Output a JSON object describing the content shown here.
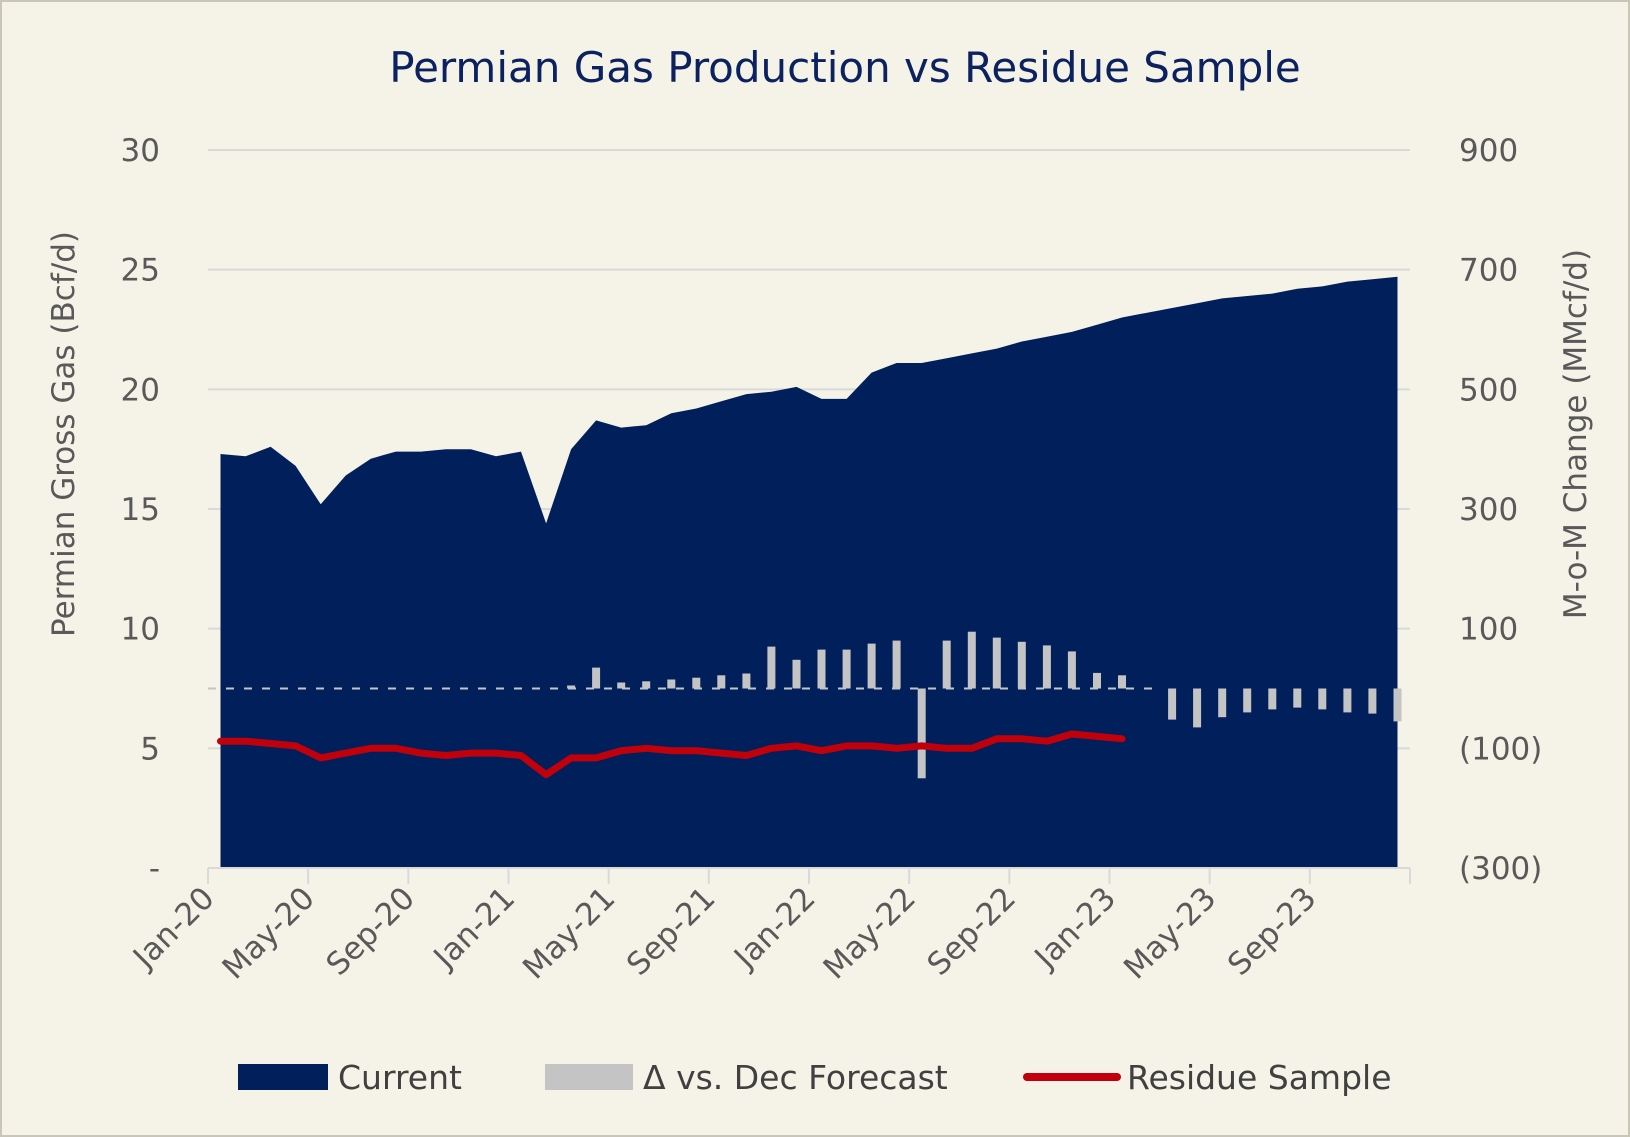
{
  "chart_data": {
    "type": "area",
    "title": "Permian Gas Production vs Residue Sample",
    "ylabel_left": "Permian Gross Gas (Bcf/d)",
    "ylabel_right": "M-o-M Change (MMcf/d)",
    "ylim_left": [
      0,
      30
    ],
    "ylim_right": [
      -300,
      900
    ],
    "yticks_left": [
      "-",
      "5",
      "10",
      "15",
      "20",
      "25",
      "30"
    ],
    "yticks_right": [
      "(300)",
      "(100)",
      "100",
      "300",
      "500",
      "700",
      "900"
    ],
    "x_tick_labels": [
      "Jan-20",
      "May-20",
      "Sep-20",
      "Jan-21",
      "May-21",
      "Sep-21",
      "Jan-22",
      "May-22",
      "Sep-22",
      "Jan-23",
      "May-23",
      "Sep-23"
    ],
    "months": [
      "Jan-20",
      "Feb-20",
      "Mar-20",
      "Apr-20",
      "May-20",
      "Jun-20",
      "Jul-20",
      "Aug-20",
      "Sep-20",
      "Oct-20",
      "Nov-20",
      "Dec-20",
      "Jan-21",
      "Feb-21",
      "Mar-21",
      "Apr-21",
      "May-21",
      "Jun-21",
      "Jul-21",
      "Aug-21",
      "Sep-21",
      "Oct-21",
      "Nov-21",
      "Dec-21",
      "Jan-22",
      "Feb-22",
      "Mar-22",
      "Apr-22",
      "May-22",
      "Jun-22",
      "Jul-22",
      "Aug-22",
      "Sep-22",
      "Oct-22",
      "Nov-22",
      "Dec-22",
      "Jan-23",
      "Feb-23",
      "Mar-23",
      "Apr-23",
      "May-23",
      "Jun-23",
      "Jul-23",
      "Aug-23",
      "Sep-23",
      "Oct-23",
      "Nov-23",
      "Dec-23"
    ],
    "grid": true,
    "legend_position": "bottom",
    "series": [
      {
        "name": "Current",
        "type": "area",
        "axis": "left",
        "color": "#001f5b",
        "values": [
          17.3,
          17.2,
          17.6,
          16.8,
          15.2,
          16.4,
          17.1,
          17.4,
          17.4,
          17.5,
          17.5,
          17.2,
          17.4,
          14.4,
          17.5,
          18.7,
          18.4,
          18.5,
          19.0,
          19.2,
          19.5,
          19.8,
          19.9,
          20.1,
          19.6,
          19.6,
          20.7,
          21.1,
          21.1,
          21.3,
          21.5,
          21.7,
          22.0,
          22.2,
          22.4,
          22.7,
          23.0,
          23.2,
          23.4,
          23.6,
          23.8,
          23.9,
          24.0,
          24.2,
          24.3,
          24.5,
          24.6,
          24.7
        ]
      },
      {
        "name": "Δ vs. Dec Forecast",
        "type": "bar",
        "axis": "right",
        "color": "#c4c4c4",
        "values": [
          0,
          0,
          0,
          0,
          0,
          0,
          0,
          0,
          0,
          0,
          0,
          0,
          0,
          0,
          5,
          35,
          10,
          12,
          15,
          18,
          22,
          25,
          70,
          48,
          65,
          65,
          75,
          80,
          -150,
          80,
          95,
          85,
          78,
          72,
          62,
          26,
          22,
          0,
          -52,
          -65,
          -48,
          -40,
          -35,
          -32,
          -35,
          -40,
          -42,
          -55
        ]
      },
      {
        "name": "Residue Sample",
        "type": "line",
        "axis": "left",
        "color": "#c0000b",
        "values": [
          5.3,
          5.3,
          5.2,
          5.1,
          4.6,
          4.8,
          5.0,
          5.0,
          4.8,
          4.7,
          4.8,
          4.8,
          4.7,
          3.9,
          4.6,
          4.6,
          4.9,
          5.0,
          4.9,
          4.9,
          4.8,
          4.7,
          5.0,
          5.1,
          4.9,
          5.1,
          5.1,
          5.0,
          5.1,
          5.0,
          5.0,
          5.4,
          5.4,
          5.3,
          5.6,
          5.5,
          5.4
        ]
      }
    ]
  }
}
